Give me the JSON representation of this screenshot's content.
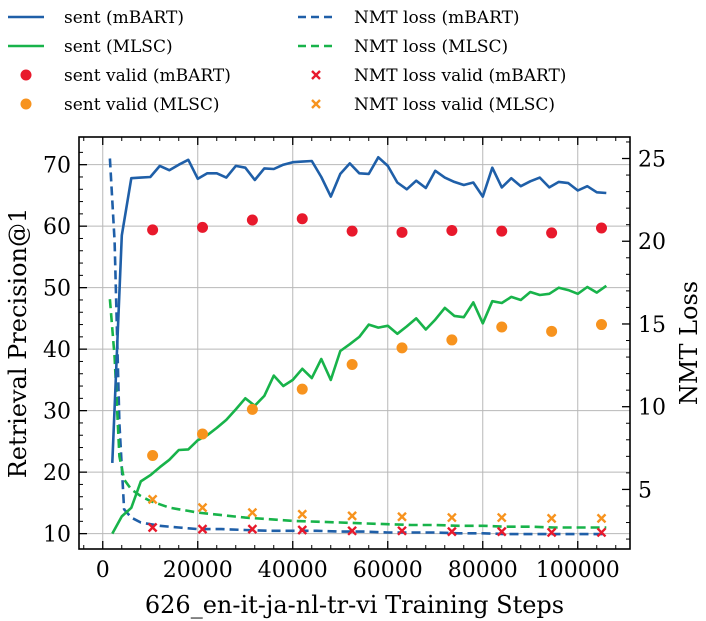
{
  "chart_data": {
    "type": "line",
    "xlabel": "626_en-it-ja-nl-tr-vi Training Steps",
    "ylabel": "Retrieval Precision@1",
    "y2label": "NMT Loss",
    "xlim": [
      -5000,
      111000
    ],
    "ylim": [
      7.5,
      74.5
    ],
    "y2lim": [
      1.4,
      26.3
    ],
    "xticks": [
      0,
      20000,
      40000,
      60000,
      80000,
      100000
    ],
    "xtick_labels": [
      "0",
      "20000",
      "40000",
      "60000",
      "80000",
      "100000"
    ],
    "yticks": [
      10,
      20,
      30,
      40,
      50,
      60,
      70
    ],
    "ytick_labels": [
      "10",
      "20",
      "30",
      "40",
      "50",
      "60",
      "70"
    ],
    "y2ticks": [
      5,
      10,
      15,
      20,
      25
    ],
    "y2tick_labels": [
      "5",
      "10",
      "15",
      "20",
      "25"
    ],
    "grid": true,
    "legend_position": "top, above plot, two columns",
    "series": [
      {
        "name": "sent (mBART)",
        "kind": "line",
        "axis": "left",
        "color": "#1f5fa8",
        "dash": "solid",
        "x": [
          2000,
          4000,
          6000,
          8000,
          10000,
          12000,
          14000,
          16000,
          18000,
          20000,
          22000,
          24000,
          26000,
          28000,
          30000,
          32000,
          34000,
          36000,
          38000,
          40000,
          42000,
          44000,
          46000,
          48000,
          50000,
          52000,
          54000,
          56000,
          58000,
          60000,
          62000,
          64000,
          66000,
          68000,
          70000,
          72000,
          74000,
          76000,
          78000,
          80000,
          82000,
          84000,
          86000,
          88000,
          90000,
          92000,
          94000,
          96000,
          98000,
          100000,
          102000,
          104000,
          106000
        ],
        "y": [
          21.5,
          58.5,
          67.8,
          67.9,
          68.0,
          69.8,
          69.1,
          70.0,
          70.8,
          67.7,
          68.6,
          68.6,
          67.9,
          69.8,
          69.5,
          67.5,
          69.4,
          69.3,
          70.0,
          70.4,
          70.5,
          70.6,
          68.0,
          64.8,
          68.5,
          70.2,
          68.6,
          68.5,
          71.2,
          69.8,
          67.1,
          66.0,
          67.4,
          66.2,
          69.0,
          67.9,
          67.2,
          66.7,
          67.1,
          64.8,
          69.5,
          66.3,
          67.8,
          66.5,
          67.3,
          67.9,
          66.3,
          67.2,
          67.0,
          65.8,
          66.5,
          65.5,
          65.4
        ]
      },
      {
        "name": "sent (MLSC)",
        "kind": "line",
        "axis": "left",
        "color": "#18b34a",
        "dash": "solid",
        "x": [
          2000,
          4000,
          6000,
          8000,
          10000,
          12000,
          14000,
          16000,
          18000,
          20000,
          22000,
          24000,
          26000,
          28000,
          30000,
          32000,
          34000,
          36000,
          38000,
          40000,
          42000,
          44000,
          46000,
          48000,
          50000,
          52000,
          54000,
          56000,
          58000,
          60000,
          62000,
          64000,
          66000,
          68000,
          70000,
          72000,
          74000,
          76000,
          78000,
          80000,
          82000,
          84000,
          86000,
          88000,
          90000,
          92000,
          94000,
          96000,
          98000,
          100000,
          102000,
          104000,
          106000
        ],
        "y": [
          10.0,
          12.8,
          14.2,
          18.5,
          19.5,
          20.8,
          22.0,
          23.6,
          23.7,
          25.2,
          26.0,
          27.2,
          28.5,
          30.2,
          32.0,
          30.8,
          32.4,
          35.7,
          34.0,
          35.0,
          36.8,
          35.3,
          38.4,
          35.0,
          39.7,
          40.8,
          42.0,
          44.0,
          43.5,
          43.8,
          42.5,
          43.7,
          45.0,
          43.2,
          44.8,
          46.7,
          45.4,
          45.2,
          47.6,
          44.2,
          47.8,
          47.5,
          48.5,
          48.0,
          49.3,
          48.8,
          49.0,
          50.0,
          49.6,
          49.0,
          50.1,
          49.2,
          50.3
        ]
      },
      {
        "name": "sent valid (mBART)",
        "kind": "scatter",
        "marker": "circle",
        "axis": "left",
        "color": "#e8192c",
        "x": [
          10500,
          21000,
          31500,
          42000,
          52500,
          63000,
          73500,
          84000,
          94500,
          105000
        ],
        "y": [
          59.4,
          59.8,
          61.0,
          61.2,
          59.2,
          59.0,
          59.3,
          59.2,
          58.9,
          59.7
        ]
      },
      {
        "name": "sent valid (MLSC)",
        "kind": "scatter",
        "marker": "circle",
        "axis": "left",
        "color": "#f7931e",
        "x": [
          10500,
          21000,
          31500,
          42000,
          52500,
          63000,
          73500,
          84000,
          94500,
          105000
        ],
        "y": [
          22.7,
          26.2,
          30.2,
          33.5,
          37.5,
          40.2,
          41.5,
          43.6,
          42.9,
          44.0
        ]
      },
      {
        "name": "NMT loss (mBART)",
        "kind": "line",
        "axis": "right",
        "color": "#1f5fa8",
        "dash": "dashed",
        "x": [
          1500,
          2500,
          3500,
          4500,
          6000,
          8000,
          10000,
          12000,
          14000,
          16000,
          18000,
          20000,
          25000,
          30000,
          35000,
          40000,
          45000,
          50000,
          55000,
          60000,
          65000,
          70000,
          75000,
          80000,
          85000,
          90000,
          95000,
          100000,
          106000
        ],
        "y": [
          25.0,
          20.0,
          9.0,
          3.8,
          3.3,
          3.0,
          2.9,
          2.8,
          2.75,
          2.7,
          2.65,
          2.6,
          2.6,
          2.55,
          2.5,
          2.5,
          2.5,
          2.45,
          2.45,
          2.4,
          2.4,
          2.4,
          2.35,
          2.35,
          2.3,
          2.3,
          2.3,
          2.3,
          2.3
        ]
      },
      {
        "name": "NMT loss (MLSC)",
        "kind": "line",
        "axis": "right",
        "color": "#18b34a",
        "dash": "dashed",
        "x": [
          1500,
          2500,
          3500,
          4500,
          6000,
          8000,
          10000,
          12000,
          14000,
          16000,
          18000,
          20000,
          25000,
          30000,
          35000,
          40000,
          45000,
          50000,
          55000,
          60000,
          65000,
          70000,
          75000,
          80000,
          85000,
          90000,
          95000,
          100000,
          106000
        ],
        "y": [
          16.5,
          13.0,
          7.0,
          5.6,
          5.0,
          4.6,
          4.3,
          4.1,
          3.9,
          3.8,
          3.7,
          3.6,
          3.45,
          3.3,
          3.2,
          3.1,
          3.05,
          3.0,
          2.95,
          2.9,
          2.85,
          2.85,
          2.8,
          2.8,
          2.75,
          2.75,
          2.7,
          2.7,
          2.7
        ]
      },
      {
        "name": "NMT loss valid (mBART)",
        "kind": "scatter",
        "marker": "x",
        "axis": "right",
        "color": "#e8192c",
        "x": [
          10500,
          21000,
          31500,
          42000,
          52500,
          63000,
          73500,
          84000,
          94500,
          105000
        ],
        "y": [
          2.7,
          2.6,
          2.6,
          2.55,
          2.5,
          2.5,
          2.45,
          2.45,
          2.4,
          2.4
        ]
      },
      {
        "name": "NMT loss valid (MLSC)",
        "kind": "scatter",
        "marker": "x",
        "axis": "right",
        "color": "#f7931e",
        "x": [
          10500,
          21000,
          31500,
          42000,
          52500,
          63000,
          73500,
          84000,
          94500,
          105000
        ],
        "y": [
          4.4,
          3.9,
          3.6,
          3.5,
          3.4,
          3.35,
          3.3,
          3.3,
          3.25,
          3.25
        ]
      }
    ]
  }
}
